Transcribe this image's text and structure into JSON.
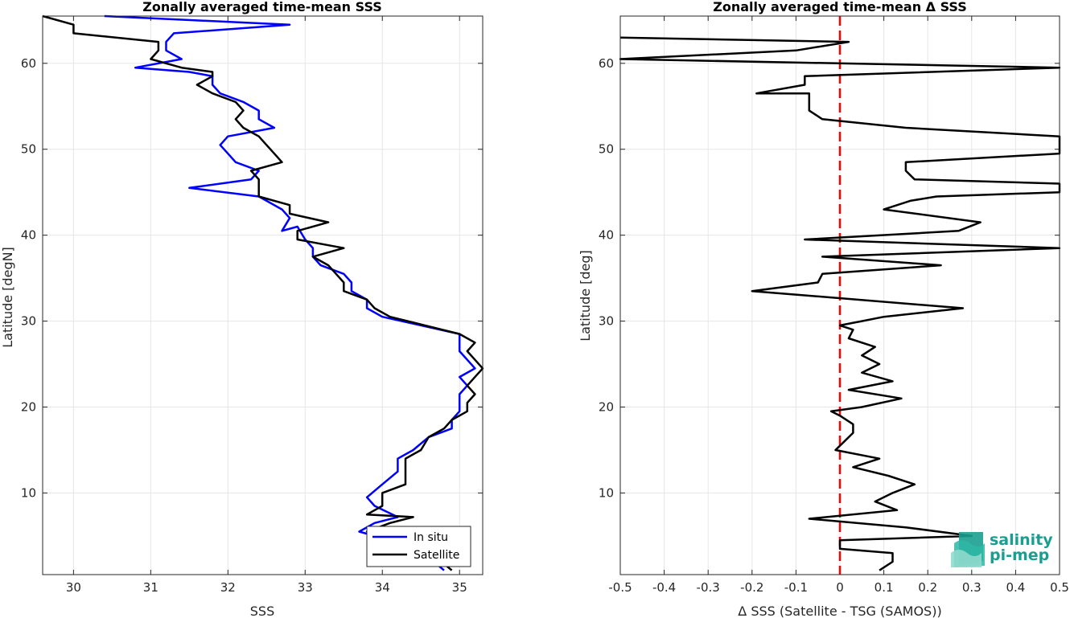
{
  "logo": {
    "line1": "salinity",
    "line2": "pi-mep",
    "color": "#1a9e8f"
  },
  "chart_data": [
    {
      "type": "line",
      "title": "Zonally averaged time-mean SSS",
      "xlabel": "SSS",
      "ylabel": "Latitude [degN]",
      "xlim": [
        29.6,
        35.3
      ],
      "ylim": [
        0.5,
        65.5
      ],
      "xticks": [
        30,
        31,
        32,
        33,
        34,
        35
      ],
      "yticks": [
        10,
        20,
        30,
        40,
        50,
        60
      ],
      "grid": true,
      "legend": {
        "position": "bottom-right",
        "entries": [
          "In situ",
          "Satellite"
        ]
      },
      "series": [
        {
          "name": "In situ",
          "color": "#0000ff",
          "points": [
            [
              34.8,
              1
            ],
            [
              34.6,
              2.5
            ],
            [
              34.4,
              3.5
            ],
            [
              34.1,
              4.5
            ],
            [
              33.7,
              5.5
            ],
            [
              33.9,
              6.5
            ],
            [
              34.2,
              7.2
            ],
            [
              33.9,
              8.5
            ],
            [
              33.8,
              9.5
            ],
            [
              34.0,
              11
            ],
            [
              34.2,
              12.5
            ],
            [
              34.2,
              14
            ],
            [
              34.4,
              15
            ],
            [
              34.6,
              16.5
            ],
            [
              34.9,
              17.5
            ],
            [
              34.9,
              18.5
            ],
            [
              35.0,
              19.5
            ],
            [
              35.0,
              20.5
            ],
            [
              35.0,
              21.5
            ],
            [
              35.1,
              22.5
            ],
            [
              35.0,
              23.5
            ],
            [
              35.2,
              24.5
            ],
            [
              35.1,
              25.5
            ],
            [
              35.0,
              26.5
            ],
            [
              35.0,
              27.5
            ],
            [
              35.0,
              28.5
            ],
            [
              34.0,
              30.5
            ],
            [
              33.8,
              31.5
            ],
            [
              33.8,
              32.5
            ],
            [
              33.6,
              33.5
            ],
            [
              33.6,
              34.5
            ],
            [
              33.5,
              35.5
            ],
            [
              33.2,
              36.5
            ],
            [
              33.1,
              37.5
            ],
            [
              33.1,
              38.5
            ],
            [
              33.0,
              39.5
            ],
            [
              32.9,
              41
            ],
            [
              32.7,
              40.5
            ],
            [
              32.8,
              42
            ],
            [
              32.7,
              43
            ],
            [
              32.4,
              44.5
            ],
            [
              31.5,
              45.5
            ],
            [
              32.3,
              46.5
            ],
            [
              32.4,
              47.5
            ],
            [
              32.1,
              48.5
            ],
            [
              32.0,
              49.5
            ],
            [
              31.9,
              50.5
            ],
            [
              32.0,
              51.5
            ],
            [
              32.6,
              52.5
            ],
            [
              32.4,
              53.5
            ],
            [
              32.4,
              54.5
            ],
            [
              32.2,
              55.5
            ],
            [
              31.9,
              56.5
            ],
            [
              31.8,
              57.5
            ],
            [
              31.8,
              58.5
            ],
            [
              31.5,
              59
            ],
            [
              30.8,
              59.5
            ],
            [
              31.4,
              60.5
            ],
            [
              31.2,
              61.5
            ],
            [
              31.2,
              62.5
            ],
            [
              31.3,
              63.5
            ],
            [
              32.8,
              64.5
            ],
            [
              30.4,
              65.5
            ]
          ]
        },
        {
          "name": "Satellite",
          "color": "#000000",
          "points": [
            [
              34.9,
              1
            ],
            [
              34.7,
              2.5
            ],
            [
              34.5,
              3.5
            ],
            [
              34.1,
              4.5
            ],
            [
              33.8,
              5.5
            ],
            [
              34.1,
              6.5
            ],
            [
              34.4,
              7.2
            ],
            [
              33.8,
              7.5
            ],
            [
              34.0,
              8.5
            ],
            [
              34.0,
              10
            ],
            [
              34.3,
              11
            ],
            [
              34.3,
              13
            ],
            [
              34.3,
              14
            ],
            [
              34.5,
              15
            ],
            [
              34.6,
              16.5
            ],
            [
              34.8,
              17.5
            ],
            [
              34.9,
              18.5
            ],
            [
              35.1,
              19.5
            ],
            [
              35.1,
              20.5
            ],
            [
              35.2,
              21.5
            ],
            [
              35.1,
              22.5
            ],
            [
              35.2,
              23.5
            ],
            [
              35.3,
              24.5
            ],
            [
              35.2,
              25.5
            ],
            [
              35.1,
              26.5
            ],
            [
              35.2,
              27.5
            ],
            [
              35.0,
              28.5
            ],
            [
              34.1,
              30.5
            ],
            [
              33.9,
              31.5
            ],
            [
              33.8,
              32.5
            ],
            [
              33.5,
              33.5
            ],
            [
              33.5,
              34.5
            ],
            [
              33.4,
              35.5
            ],
            [
              33.3,
              36.5
            ],
            [
              33.1,
              37.5
            ],
            [
              33.5,
              38.5
            ],
            [
              32.9,
              39.5
            ],
            [
              32.9,
              40.5
            ],
            [
              33.3,
              41.5
            ],
            [
              32.8,
              42.5
            ],
            [
              32.8,
              43.5
            ],
            [
              32.4,
              44.5
            ],
            [
              32.4,
              45.5
            ],
            [
              32.4,
              46.5
            ],
            [
              32.3,
              47.5
            ],
            [
              32.7,
              48.5
            ],
            [
              32.6,
              49.5
            ],
            [
              32.5,
              50.5
            ],
            [
              32.4,
              51.5
            ],
            [
              32.2,
              52.5
            ],
            [
              32.1,
              53.5
            ],
            [
              32.2,
              54.5
            ],
            [
              32.1,
              55.5
            ],
            [
              31.8,
              56.5
            ],
            [
              31.6,
              57.5
            ],
            [
              31.8,
              58.5
            ],
            [
              31.8,
              59
            ],
            [
              31.4,
              59.5
            ],
            [
              31.0,
              60.5
            ],
            [
              31.1,
              61.5
            ],
            [
              31.1,
              62.5
            ],
            [
              30.0,
              63.5
            ],
            [
              30.0,
              64.5
            ],
            [
              29.6,
              65.5
            ]
          ]
        }
      ]
    },
    {
      "type": "line",
      "title": "Zonally averaged time-mean Δ SSS",
      "xlabel": "Δ SSS (Satellite - TSG (SAMOS))",
      "ylabel": "Latitude [deg]",
      "xlim": [
        -0.5,
        0.5
      ],
      "ylim": [
        0.5,
        65.5
      ],
      "xticks": [
        -0.5,
        -0.4,
        -0.3,
        -0.2,
        -0.1,
        0,
        0.1,
        0.2,
        0.3,
        0.4,
        0.5
      ],
      "xticklabels": [
        "-0.5",
        "-0.4",
        "-0.3",
        "-0.2",
        "-0.1",
        "0",
        "0.1",
        "0.2",
        "0.3",
        "0.4",
        "0.5"
      ],
      "yticks": [
        10,
        20,
        30,
        40,
        50,
        60
      ],
      "grid": true,
      "reference_line": {
        "x": 0,
        "color": "#ff0000",
        "style": "dashed"
      },
      "series": [
        {
          "color": "#000000",
          "points": [
            [
              0.09,
              1
            ],
            [
              0.12,
              2
            ],
            [
              0.12,
              3
            ],
            [
              0.0,
              3.5
            ],
            [
              0.0,
              4.5
            ],
            [
              0.3,
              5
            ],
            [
              0.15,
              6
            ],
            [
              -0.07,
              7
            ],
            [
              0.13,
              8
            ],
            [
              0.08,
              9
            ],
            [
              0.12,
              10
            ],
            [
              0.17,
              11
            ],
            [
              0.11,
              12
            ],
            [
              0.03,
              13
            ],
            [
              0.09,
              14
            ],
            [
              -0.01,
              15
            ],
            [
              0.01,
              16
            ],
            [
              0.03,
              17
            ],
            [
              0.03,
              18
            ],
            [
              0.0,
              19
            ],
            [
              -0.02,
              19.5
            ],
            [
              0.05,
              20
            ],
            [
              0.14,
              21
            ],
            [
              0.02,
              22
            ],
            [
              0.12,
              23
            ],
            [
              0.05,
              24
            ],
            [
              0.09,
              25
            ],
            [
              0.05,
              26
            ],
            [
              0.08,
              27
            ],
            [
              0.02,
              28
            ],
            [
              0.03,
              29
            ],
            [
              0.0,
              29.5
            ],
            [
              0.05,
              30
            ],
            [
              0.1,
              30.5
            ],
            [
              0.28,
              31.5
            ],
            [
              -0.2,
              33.5
            ],
            [
              -0.05,
              34.5
            ],
            [
              -0.04,
              35.5
            ],
            [
              0.23,
              36.5
            ],
            [
              -0.04,
              37.5
            ],
            [
              0.5,
              38.5
            ],
            [
              0.5,
              38.5
            ],
            [
              -0.08,
              39.5
            ],
            [
              0.27,
              40.5
            ],
            [
              0.32,
              41.5
            ],
            [
              0.1,
              43
            ],
            [
              0.16,
              44
            ],
            [
              0.22,
              44.5
            ],
            [
              0.5,
              45
            ],
            [
              0.5,
              46
            ],
            [
              0.17,
              46.5
            ],
            [
              0.15,
              47.5
            ],
            [
              0.15,
              48.5
            ],
            [
              0.5,
              49.5
            ],
            [
              0.5,
              51.5
            ],
            [
              0.15,
              52.5
            ],
            [
              -0.04,
              53.5
            ],
            [
              -0.07,
              54.5
            ],
            [
              -0.07,
              56.5
            ],
            [
              -0.19,
              56.5
            ],
            [
              -0.08,
              57.5
            ],
            [
              -0.08,
              58.5
            ],
            [
              0.5,
              59.5
            ],
            [
              -0.5,
              60.5
            ],
            [
              -0.1,
              61.5
            ],
            [
              0.02,
              62.5
            ],
            [
              -0.5,
              63
            ]
          ]
        }
      ]
    }
  ]
}
